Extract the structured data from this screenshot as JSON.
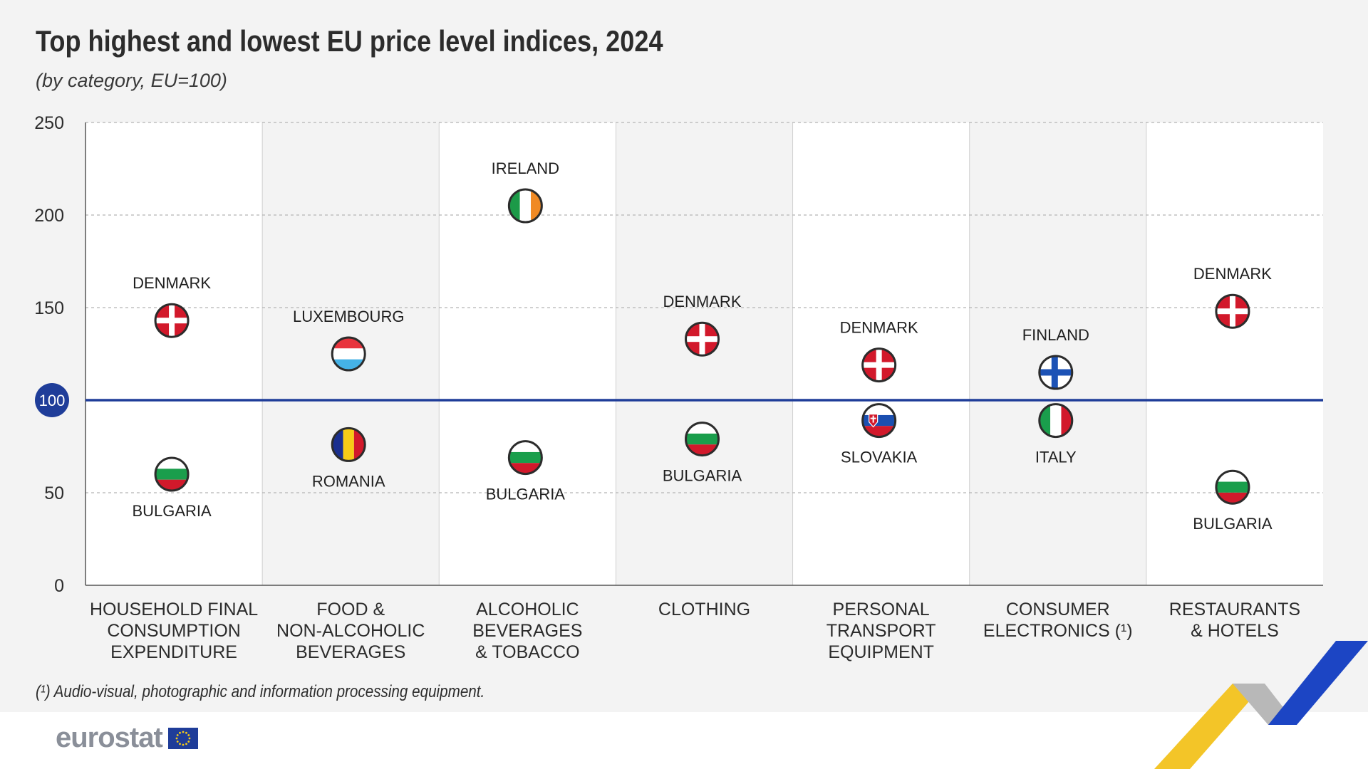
{
  "header": {
    "title": "Top highest and lowest EU price level indices, 2024",
    "subtitle": "(by category, EU=100)"
  },
  "footnote": "(¹) Audio-visual, photographic and information processing equipment.",
  "brand": {
    "logo_text": "eurostat"
  },
  "colors": {
    "accent": "#1f3d99",
    "grid": "#b5b5b5",
    "panel_light": "#ffffff",
    "panel_dark": "#f3f3f3",
    "denmark_red": "#d2192b",
    "bulgaria_green": "#1a9e4c",
    "ireland_green": "#1c9a48",
    "ireland_orange": "#f08a24",
    "luxembourg_blue": "#45b2e6",
    "romania_blue": "#1a2f8f",
    "romania_yellow": "#f7cc16",
    "finland_blue": "#1c52b5",
    "italy_green": "#1a9e4c",
    "slovakia_blue": "#1b4fb0",
    "decor_yellow": "#f2c21c",
    "decor_blue": "#1c45c4",
    "decor_gray": "#b8b8b8"
  },
  "chart_data": {
    "type": "scatter",
    "title": "Top highest and lowest EU price level indices, 2024",
    "subtitle": "(by category, EU=100)",
    "reference_line": {
      "value": 100,
      "label": "100"
    },
    "ylim": [
      0,
      250
    ],
    "yticks": [
      0,
      50,
      100,
      150,
      200,
      250
    ],
    "grid": true,
    "categories": [
      "HOUSEHOLD FINAL CONSUMPTION EXPENDITURE",
      "FOOD & NON-ALCOHOLIC BEVERAGES",
      "ALCOHOLIC BEVERAGES & TOBACCO",
      "CLOTHING",
      "PERSONAL TRANSPORT EQUIPMENT",
      "CONSUMER ELECTRONICS (¹)",
      "RESTAURANTS & HOTELS"
    ],
    "category_lines": [
      [
        "HOUSEHOLD FINAL",
        "CONSUMPTION",
        "EXPENDITURE"
      ],
      [
        "FOOD &",
        "NON-ALCOHOLIC",
        "BEVERAGES"
      ],
      [
        "ALCOHOLIC",
        "BEVERAGES",
        "& TOBACCO"
      ],
      [
        "CLOTHING"
      ],
      [
        "PERSONAL",
        "TRANSPORT",
        "EQUIPMENT"
      ],
      [
        "CONSUMER",
        "ELECTRONICS (¹)"
      ],
      [
        "RESTAURANTS",
        "& HOTELS"
      ]
    ],
    "points": [
      {
        "category": 0,
        "country": "DENMARK",
        "flag": "denmark",
        "value": 143,
        "label_pos": "above"
      },
      {
        "category": 0,
        "country": "BULGARIA",
        "flag": "bulgaria",
        "value": 60,
        "label_pos": "below"
      },
      {
        "category": 1,
        "country": "LUXEMBOURG",
        "flag": "luxembourg",
        "value": 125,
        "label_pos": "above"
      },
      {
        "category": 1,
        "country": "ROMANIA",
        "flag": "romania",
        "value": 76,
        "label_pos": "below"
      },
      {
        "category": 2,
        "country": "IRELAND",
        "flag": "ireland",
        "value": 205,
        "label_pos": "above"
      },
      {
        "category": 2,
        "country": "BULGARIA",
        "flag": "bulgaria",
        "value": 69,
        "label_pos": "below"
      },
      {
        "category": 3,
        "country": "DENMARK",
        "flag": "denmark",
        "value": 133,
        "label_pos": "above"
      },
      {
        "category": 3,
        "country": "BULGARIA",
        "flag": "bulgaria",
        "value": 79,
        "label_pos": "below"
      },
      {
        "category": 4,
        "country": "DENMARK",
        "flag": "denmark",
        "value": 119,
        "label_pos": "above"
      },
      {
        "category": 4,
        "country": "SLOVAKIA",
        "flag": "slovakia",
        "value": 89,
        "label_pos": "below"
      },
      {
        "category": 5,
        "country": "FINLAND",
        "flag": "finland",
        "value": 115,
        "label_pos": "above"
      },
      {
        "category": 5,
        "country": "ITALY",
        "flag": "italy",
        "value": 89,
        "label_pos": "below"
      },
      {
        "category": 6,
        "country": "DENMARK",
        "flag": "denmark",
        "value": 148,
        "label_pos": "above"
      },
      {
        "category": 6,
        "country": "BULGARIA",
        "flag": "bulgaria",
        "value": 53,
        "label_pos": "below"
      }
    ]
  }
}
